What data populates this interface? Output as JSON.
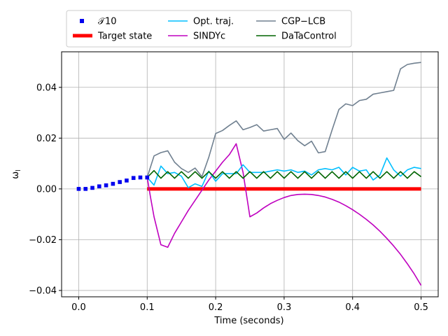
{
  "chart_data": {
    "type": "line",
    "title": "",
    "xlabel": "Time (seconds)",
    "ylabel": "ω_l",
    "xlim": [
      -0.025,
      0.525
    ],
    "ylim": [
      -0.0425,
      0.054
    ],
    "grid": true,
    "legend": "top-center",
    "xticks": [
      0.0,
      0.1,
      0.2,
      0.3,
      0.4,
      0.5
    ],
    "xtick_labels": [
      "0.0",
      "0.1",
      "0.2",
      "0.3",
      "0.4",
      "0.5"
    ],
    "yticks": [
      -0.04,
      -0.02,
      0.0,
      0.02,
      0.04
    ],
    "ytick_labels": [
      "−0.04",
      "−0.02",
      "0.00",
      "0.02",
      "0.04"
    ],
    "series": [
      {
        "name": "𝒯10",
        "style": "markers",
        "color": "#0000ee",
        "x": [
          0.0,
          0.01,
          0.02,
          0.03,
          0.04,
          0.05,
          0.06,
          0.07,
          0.08,
          0.09,
          0.1
        ],
        "y": [
          0.0,
          0.0,
          0.0004,
          0.001,
          0.0014,
          0.002,
          0.0027,
          0.0033,
          0.0043,
          0.0045,
          0.0045
        ]
      },
      {
        "name": "Target state",
        "style": "thick-line",
        "color": "#ff0000",
        "x": [
          0.1,
          0.5
        ],
        "y": [
          0.0,
          0.0
        ]
      },
      {
        "name": "Opt. traj.",
        "style": "line",
        "color": "#00bfff",
        "x": [
          0.1,
          0.11,
          0.12,
          0.13,
          0.14,
          0.15,
          0.16,
          0.17,
          0.18,
          0.19,
          0.2,
          0.21,
          0.22,
          0.23,
          0.24,
          0.25,
          0.26,
          0.27,
          0.28,
          0.29,
          0.3,
          0.31,
          0.32,
          0.33,
          0.34,
          0.35,
          0.36,
          0.37,
          0.38,
          0.39,
          0.4,
          0.41,
          0.42,
          0.43,
          0.44,
          0.45,
          0.46,
          0.47,
          0.48,
          0.49,
          0.5
        ],
        "y": [
          0.0045,
          0.0015,
          0.009,
          0.006,
          0.0065,
          0.005,
          0.0005,
          0.002,
          0.001,
          0.007,
          0.003,
          0.006,
          0.006,
          0.006,
          0.0095,
          0.0065,
          0.0065,
          0.0065,
          0.007,
          0.0075,
          0.007,
          0.0075,
          0.0065,
          0.007,
          0.0055,
          0.0075,
          0.008,
          0.0075,
          0.0085,
          0.0055,
          0.0085,
          0.007,
          0.0075,
          0.0035,
          0.0055,
          0.0122,
          0.0075,
          0.005,
          0.0075,
          0.0085,
          0.008
        ]
      },
      {
        "name": "SINDYc",
        "style": "line",
        "color": "#bf00bf",
        "x": [
          0.1,
          0.105,
          0.11,
          0.115,
          0.12,
          0.13,
          0.14,
          0.15,
          0.16,
          0.17,
          0.18,
          0.19,
          0.2,
          0.21,
          0.22,
          0.23,
          0.24,
          0.25,
          0.26,
          0.27,
          0.28,
          0.29,
          0.3,
          0.31,
          0.32,
          0.33,
          0.34,
          0.35,
          0.36,
          0.37,
          0.38,
          0.39,
          0.4,
          0.41,
          0.42,
          0.43,
          0.44,
          0.45,
          0.46,
          0.47,
          0.48,
          0.49,
          0.5
        ],
        "y": [
          0.0045,
          -0.0035,
          -0.011,
          -0.0165,
          -0.022,
          -0.023,
          -0.0175,
          -0.013,
          -0.0085,
          -0.0045,
          -0.0005,
          0.0035,
          0.007,
          0.0105,
          0.0135,
          0.0178,
          0.0065,
          -0.011,
          -0.0095,
          -0.0075,
          -0.0058,
          -0.0045,
          -0.0034,
          -0.0026,
          -0.0022,
          -0.0021,
          -0.0022,
          -0.0026,
          -0.0032,
          -0.0041,
          -0.0052,
          -0.0066,
          -0.0082,
          -0.01,
          -0.012,
          -0.0142,
          -0.0167,
          -0.0195,
          -0.0225,
          -0.0258,
          -0.0295,
          -0.0335,
          -0.038
        ]
      },
      {
        "name": "CGP−LCB",
        "style": "line",
        "color": "#708090",
        "x": [
          0.1,
          0.11,
          0.12,
          0.13,
          0.14,
          0.15,
          0.16,
          0.17,
          0.18,
          0.19,
          0.2,
          0.21,
          0.22,
          0.23,
          0.24,
          0.25,
          0.26,
          0.27,
          0.28,
          0.29,
          0.3,
          0.31,
          0.32,
          0.33,
          0.34,
          0.35,
          0.36,
          0.37,
          0.38,
          0.39,
          0.4,
          0.41,
          0.42,
          0.43,
          0.44,
          0.45,
          0.46,
          0.47,
          0.48,
          0.49,
          0.5
        ],
        "y": [
          0.0045,
          0.013,
          0.0143,
          0.015,
          0.0105,
          0.008,
          0.0065,
          0.0082,
          0.0048,
          0.0125,
          0.0218,
          0.023,
          0.025,
          0.0268,
          0.0233,
          0.0242,
          0.0253,
          0.0228,
          0.0233,
          0.0238,
          0.0195,
          0.022,
          0.019,
          0.017,
          0.0188,
          0.0142,
          0.0147,
          0.0232,
          0.0313,
          0.0335,
          0.0328,
          0.0348,
          0.0353,
          0.0373,
          0.0378,
          0.0383,
          0.0388,
          0.0473,
          0.049,
          0.0495,
          0.0498
        ]
      },
      {
        "name": "DaTaControl",
        "style": "line",
        "color": "#006400",
        "x": [
          0.1,
          0.11,
          0.12,
          0.13,
          0.14,
          0.15,
          0.16,
          0.17,
          0.18,
          0.19,
          0.2,
          0.21,
          0.22,
          0.23,
          0.24,
          0.25,
          0.26,
          0.27,
          0.28,
          0.29,
          0.3,
          0.31,
          0.32,
          0.33,
          0.34,
          0.35,
          0.36,
          0.37,
          0.38,
          0.39,
          0.4,
          0.41,
          0.42,
          0.43,
          0.44,
          0.45,
          0.46,
          0.47,
          0.48,
          0.49,
          0.5
        ],
        "y": [
          0.0045,
          0.0072,
          0.0042,
          0.0068,
          0.0042,
          0.0068,
          0.0042,
          0.0068,
          0.0042,
          0.0068,
          0.0042,
          0.0068,
          0.0042,
          0.0068,
          0.0042,
          0.0068,
          0.0042,
          0.0068,
          0.0042,
          0.0068,
          0.0042,
          0.0068,
          0.0042,
          0.0068,
          0.0042,
          0.0068,
          0.0042,
          0.0068,
          0.0042,
          0.0068,
          0.0042,
          0.0068,
          0.0042,
          0.0068,
          0.0042,
          0.0068,
          0.0042,
          0.0068,
          0.0042,
          0.0068,
          0.0048
        ]
      }
    ],
    "legend_order": [
      0,
      1,
      2,
      3,
      4,
      5
    ]
  }
}
